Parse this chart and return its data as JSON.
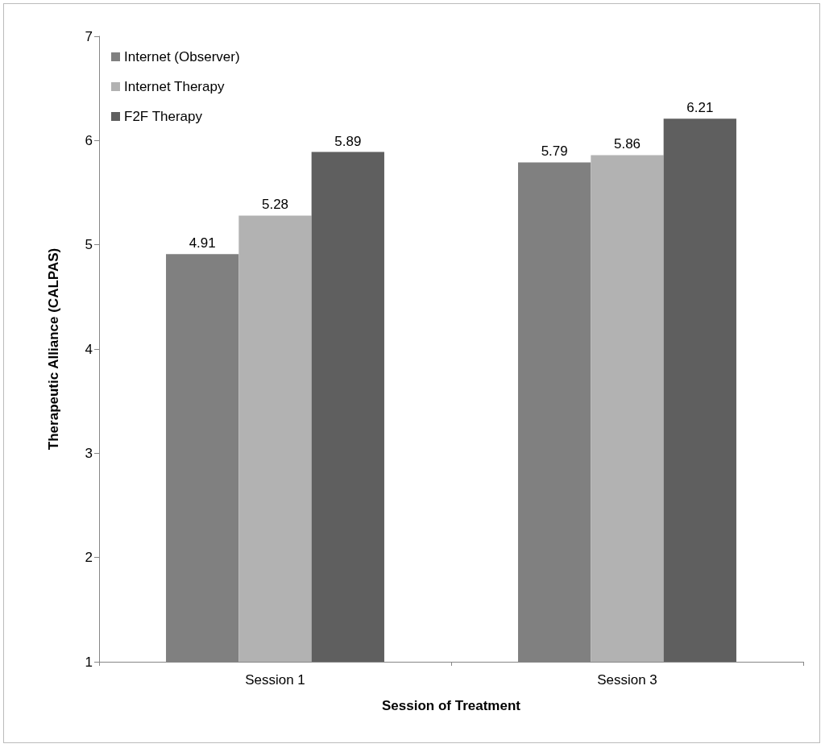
{
  "chart_data": {
    "type": "bar",
    "xlabel": "Session of Treatment",
    "ylabel": "Therapeutic Alliance (CALPAS)",
    "categories": [
      "Session 1",
      "Session 3"
    ],
    "series": [
      {
        "name": "Internet (Observer)",
        "color": "#808080",
        "values": [
          4.91,
          5.79
        ]
      },
      {
        "name": "Internet Therapy",
        "color": "#b2b2b2",
        "values": [
          5.28,
          5.86
        ]
      },
      {
        "name": "F2F Therapy",
        "color": "#5f5f5f",
        "values": [
          5.89,
          6.21
        ]
      }
    ],
    "ylim": [
      1,
      7
    ],
    "yticks": [
      1,
      2,
      3,
      4,
      5,
      6,
      7
    ],
    "data_labels": true,
    "grid": false,
    "legend": "top left"
  }
}
